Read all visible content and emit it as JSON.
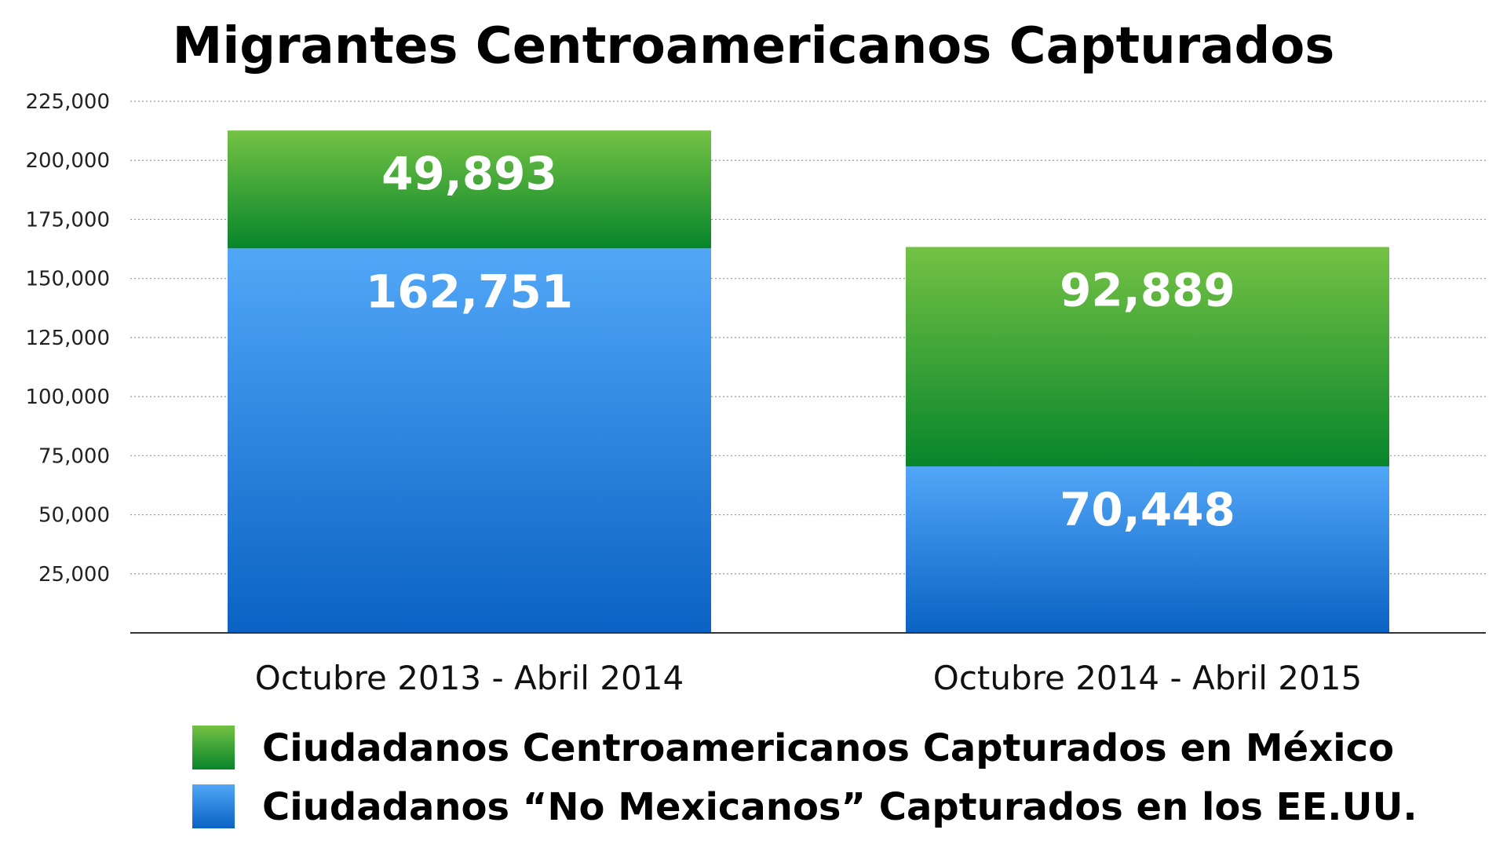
{
  "chart_data": {
    "type": "bar",
    "stacked": true,
    "title": "Migrantes Centroamericanos Capturados",
    "categories": [
      "Octubre 2013 - Abril 2014",
      "Octubre 2014 - Abril 2015"
    ],
    "series": [
      {
        "name": "Ciudadanos “No Mexicanos” Capturados en los EE.UU.",
        "values": [
          162751,
          70448
        ],
        "labels": [
          "162,751",
          "70,448"
        ],
        "color_top": "#52a7f7",
        "color_bottom": "#0a62c4"
      },
      {
        "name": "Ciudadanos Centroamericanos Capturados en México",
        "values": [
          49893,
          92889
        ],
        "labels": [
          "49,893",
          "92,889"
        ],
        "color_top": "#74c244",
        "color_bottom": "#07852b"
      }
    ],
    "ylim": [
      0,
      225000
    ],
    "yticks": [
      25000,
      50000,
      75000,
      100000,
      125000,
      150000,
      175000,
      200000,
      225000
    ],
    "ytick_labels": [
      "25,000",
      "50,000",
      "75,000",
      "100,000",
      "125,000",
      "150,000",
      "175,000",
      "200,000",
      "225,000"
    ],
    "grid": true,
    "legend_position": "bottom-left",
    "legend_order": [
      1,
      0
    ]
  }
}
